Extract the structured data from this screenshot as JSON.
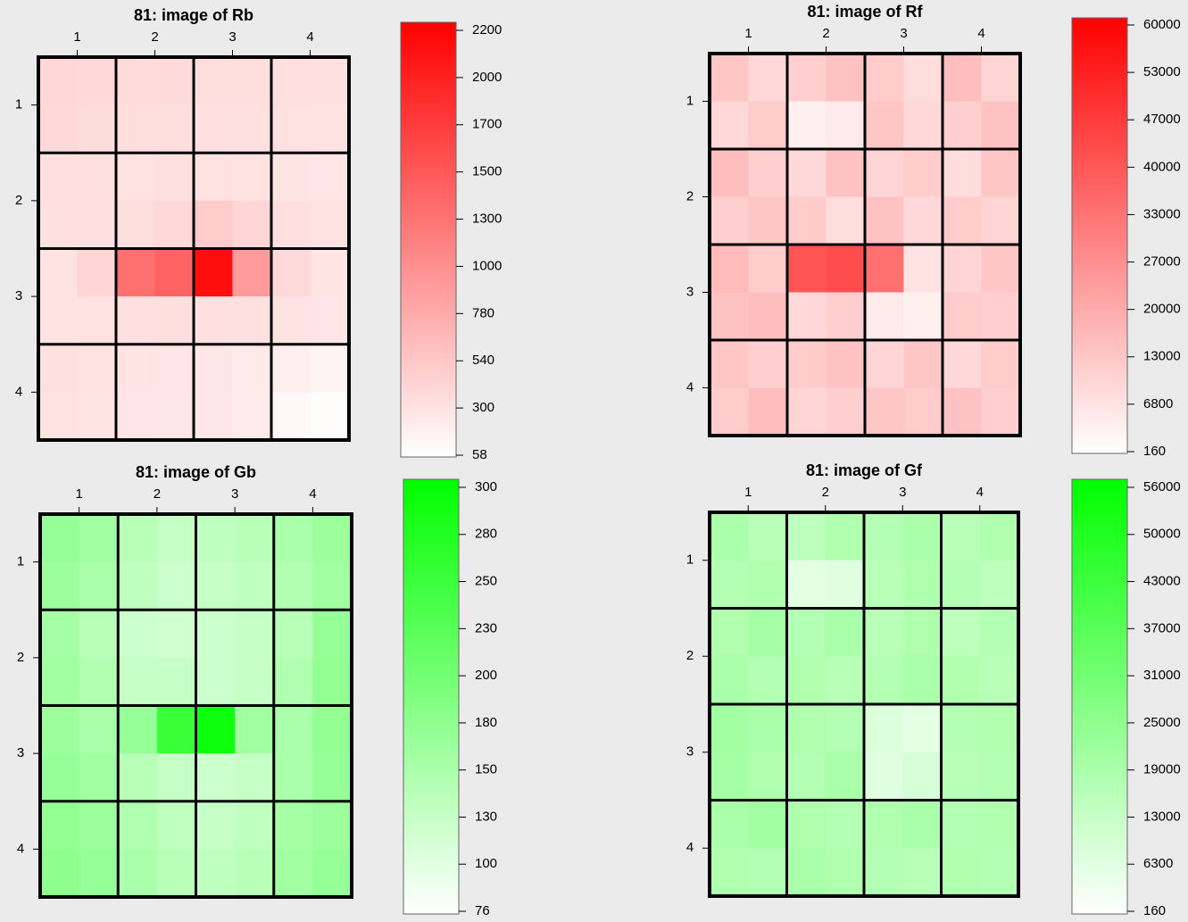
{
  "chart_data": [
    {
      "type": "heatmap",
      "title": "81: image of Rb",
      "color": "#ff0000",
      "xticks": [
        1,
        2,
        3,
        4
      ],
      "yticks": [
        1,
        2,
        3,
        4
      ],
      "xlim": [
        0.5,
        4.5
      ],
      "ylim": [
        4.5,
        0.5
      ],
      "colorbar_ticks": [
        58,
        300,
        540,
        780,
        1000,
        1300,
        1500,
        1700,
        2000,
        2200
      ],
      "values": [
        [
          400,
          380,
          360,
          370,
          350,
          340,
          330,
          320
        ],
        [
          380,
          360,
          350,
          340,
          330,
          320,
          310,
          300
        ],
        [
          330,
          320,
          310,
          320,
          310,
          300,
          290,
          280
        ],
        [
          320,
          330,
          340,
          380,
          500,
          420,
          330,
          300
        ],
        [
          300,
          420,
          1300,
          1400,
          2100,
          900,
          380,
          290
        ],
        [
          300,
          310,
          330,
          340,
          330,
          320,
          300,
          280
        ],
        [
          320,
          300,
          290,
          280,
          270,
          250,
          200,
          150
        ],
        [
          310,
          290,
          280,
          270,
          260,
          240,
          120,
          80
        ]
      ]
    },
    {
      "type": "heatmap",
      "title": "81: image of Rf",
      "color": "#ff0000",
      "xticks": [
        1,
        2,
        3,
        4
      ],
      "yticks": [
        1,
        2,
        3,
        4
      ],
      "xlim": [
        0.5,
        4.5
      ],
      "ylim": [
        4.5,
        0.5
      ],
      "colorbar_ticks": [
        160,
        6800,
        13000,
        20000,
        27000,
        33000,
        40000,
        47000,
        53000,
        60000
      ],
      "values": [
        [
          13000,
          9000,
          11000,
          14000,
          12000,
          8000,
          15000,
          10000
        ],
        [
          9000,
          12000,
          4000,
          5000,
          13000,
          9000,
          11000,
          14000
        ],
        [
          15000,
          11000,
          9000,
          14000,
          10000,
          12000,
          8000,
          13000
        ],
        [
          11000,
          13000,
          12000,
          8000,
          14000,
          9000,
          12000,
          10000
        ],
        [
          16000,
          12000,
          40000,
          42000,
          33000,
          7000,
          10000,
          13000
        ],
        [
          14000,
          15000,
          9000,
          11000,
          5000,
          4000,
          12000,
          11000
        ],
        [
          13000,
          11000,
          12000,
          14000,
          10000,
          13000,
          9000,
          12000
        ],
        [
          12000,
          15000,
          10000,
          11000,
          13000,
          12000,
          14000,
          11000
        ]
      ]
    },
    {
      "type": "heatmap",
      "title": "81: image of Gb",
      "color": "#00ff00",
      "xticks": [
        1,
        2,
        3,
        4
      ],
      "yticks": [
        1,
        2,
        3,
        4
      ],
      "xlim": [
        0.5,
        4.5
      ],
      "ylim": [
        4.5,
        0.5
      ],
      "colorbar_ticks": [
        76,
        100,
        130,
        150,
        180,
        200,
        230,
        250,
        280,
        300
      ],
      "values": [
        [
          170,
          160,
          140,
          130,
          135,
          140,
          150,
          165
        ],
        [
          165,
          150,
          135,
          125,
          130,
          135,
          145,
          160
        ],
        [
          155,
          140,
          125,
          120,
          125,
          130,
          140,
          170
        ],
        [
          160,
          145,
          130,
          130,
          125,
          130,
          145,
          175
        ],
        [
          165,
          150,
          170,
          250,
          290,
          160,
          150,
          175
        ],
        [
          170,
          160,
          140,
          130,
          125,
          130,
          150,
          170
        ],
        [
          175,
          165,
          145,
          135,
          130,
          135,
          155,
          165
        ],
        [
          180,
          170,
          150,
          140,
          135,
          140,
          160,
          170
        ]
      ]
    },
    {
      "type": "heatmap",
      "title": "81: image of Gf",
      "color": "#00ff00",
      "xticks": [
        1,
        2,
        3,
        4
      ],
      "yticks": [
        1,
        2,
        3,
        4
      ],
      "xlim": [
        0.5,
        4.5
      ],
      "ylim": [
        4.5,
        0.5
      ],
      "colorbar_ticks": [
        160,
        6300,
        13000,
        19000,
        25000,
        31000,
        37000,
        43000,
        50000,
        56000
      ],
      "values": [
        [
          19000,
          16000,
          15000,
          18000,
          17000,
          19000,
          16000,
          18000
        ],
        [
          17000,
          18000,
          6300,
          7000,
          16000,
          18000,
          17000,
          15000
        ],
        [
          18000,
          20000,
          17000,
          19000,
          16000,
          18000,
          15000,
          17000
        ],
        [
          19000,
          17000,
          18000,
          16000,
          17000,
          19000,
          18000,
          16000
        ],
        [
          21000,
          19000,
          18000,
          17000,
          8000,
          6300,
          17000,
          18000
        ],
        [
          20000,
          18000,
          17000,
          19000,
          7000,
          9000,
          16000,
          17000
        ],
        [
          19000,
          21000,
          18000,
          17000,
          18000,
          19000,
          17000,
          18000
        ],
        [
          18000,
          17000,
          19000,
          18000,
          17000,
          16000,
          18000,
          17000
        ]
      ]
    }
  ]
}
